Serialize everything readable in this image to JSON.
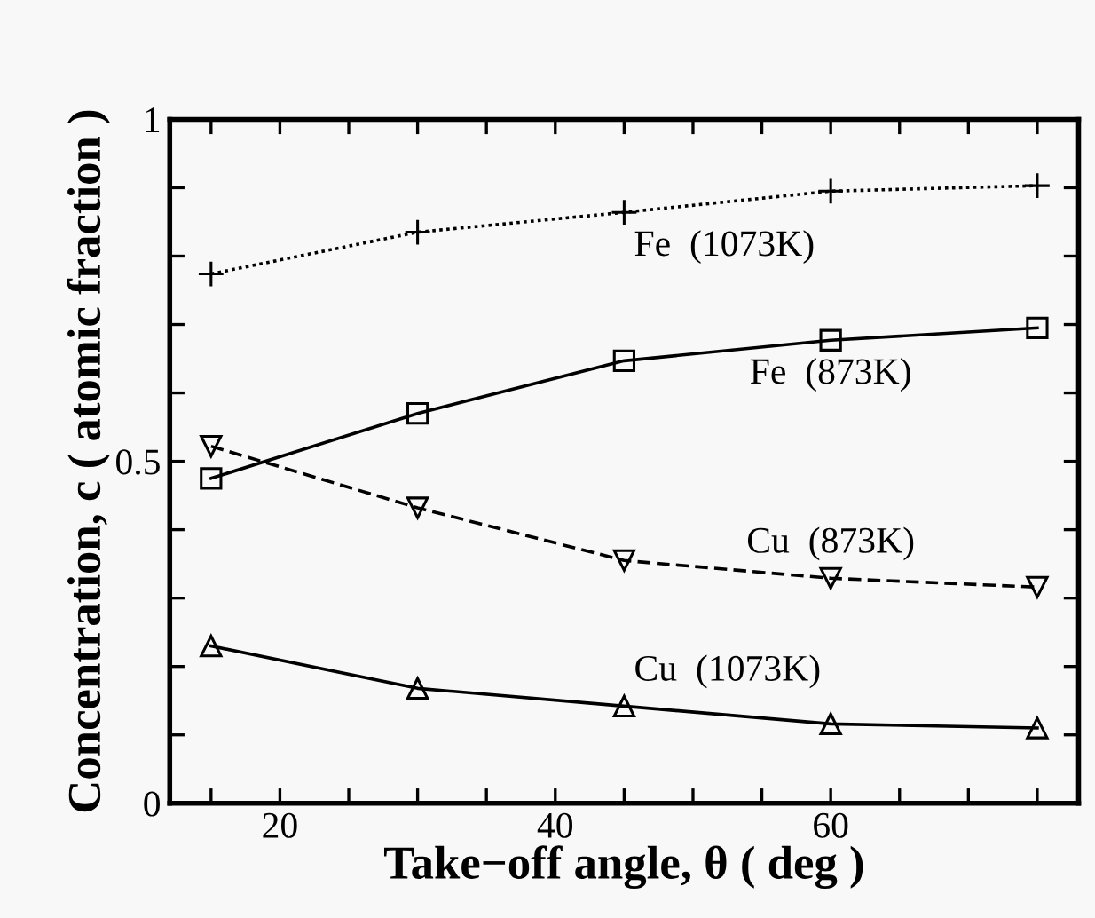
{
  "chart_data": {
    "type": "line",
    "xlabel": "Take−off angle, θ ( deg )",
    "ylabel": "Concentration, c ( atomic fraction )",
    "x": [
      15,
      30,
      45,
      60,
      75
    ],
    "series": [
      {
        "name": "Fe  (1073K)",
        "color": "#000000",
        "values": [
          0.774,
          0.835,
          0.864,
          0.895,
          0.903
        ],
        "marker": "cross",
        "line_style": "dotted"
      },
      {
        "name": "Fe  (873K)",
        "color": "#000000",
        "values": [
          0.475,
          0.57,
          0.647,
          0.677,
          0.695
        ],
        "marker": "square",
        "line_style": "solid"
      },
      {
        "name": "Cu  (873K)",
        "color": "#000000",
        "values": [
          0.522,
          0.432,
          0.355,
          0.329,
          0.316
        ],
        "marker": "triangle_down",
        "line_style": "dashed"
      },
      {
        "name": "Cu  (1073K)",
        "color": "#000000",
        "values": [
          0.23,
          0.168,
          0.142,
          0.116,
          0.11
        ],
        "marker": "triangle",
        "line_style": "solid"
      }
    ],
    "xlim": [
      12,
      78
    ],
    "ylim": [
      0,
      1.0
    ],
    "xticks": [
      {
        "value": 15,
        "label": null
      },
      20,
      {
        "value": 25,
        "label": null
      },
      {
        "value": 30,
        "label": null
      },
      {
        "value": 35,
        "label": null
      },
      40,
      {
        "value": 45,
        "label": null
      },
      {
        "value": 50,
        "label": null
      },
      {
        "value": 55,
        "label": null
      },
      60,
      {
        "value": 65,
        "label": null
      },
      {
        "value": 70,
        "label": null
      },
      {
        "value": 75,
        "label": null
      }
    ],
    "yticks": [
      0,
      {
        "value": 0.1,
        "label": null
      },
      {
        "value": 0.2,
        "label": null
      },
      {
        "value": 0.3,
        "label": null
      },
      {
        "value": 0.4,
        "label": null
      },
      0.5,
      {
        "value": 0.6,
        "label": null
      },
      {
        "value": 0.7,
        "label": null
      },
      {
        "value": 0.8,
        "label": null
      },
      {
        "value": 0.9,
        "label": null
      },
      1
    ],
    "grid": false,
    "legend": false
  }
}
